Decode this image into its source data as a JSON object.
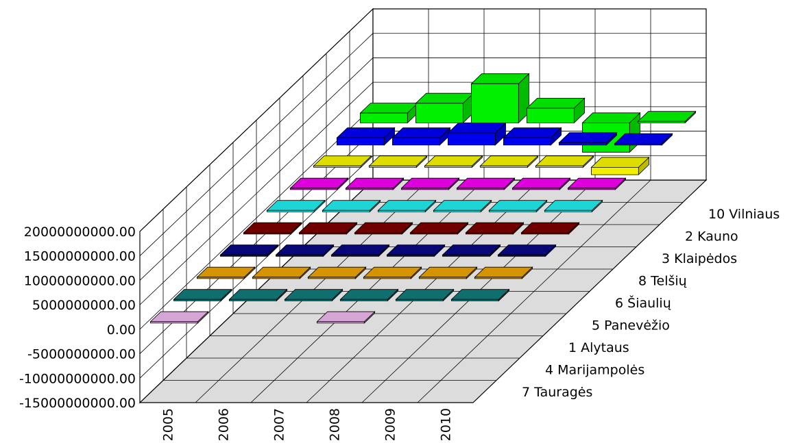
{
  "chart_data": {
    "type": "bar",
    "title": "",
    "xlabel": "",
    "ylabel": "",
    "categories": [
      "2005",
      "2006",
      "2007",
      "2008",
      "2009",
      "2010"
    ],
    "y_ticks": [
      "20000000000.00",
      "15000000000.00",
      "10000000000.00",
      "5000000000.00",
      "0.00",
      "-5000000000.00",
      "-10000000000.00",
      "-15000000000.00"
    ],
    "ylim": [
      -15000000000,
      20000000000
    ],
    "grid": true,
    "legend_position": "right",
    "series": [
      {
        "name": "7 Tauragės",
        "color": "#e8b4e8",
        "values": [
          300000000,
          null,
          null,
          300000000,
          null,
          null
        ]
      },
      {
        "name": "4 Marijampolės",
        "color": "#107878",
        "values": [
          300000000,
          300000000,
          300000000,
          300000000,
          300000000,
          300000000
        ]
      },
      {
        "name": "1 Alytaus",
        "color": "#e8a000",
        "values": [
          300000000,
          300000000,
          300000000,
          300000000,
          300000000,
          300000000
        ]
      },
      {
        "name": "5 Panevėžio",
        "color": "#080880",
        "values": [
          300000000,
          300000000,
          300000000,
          300000000,
          300000000,
          300000000
        ]
      },
      {
        "name": "6 Šiaulių",
        "color": "#780000",
        "values": [
          300000000,
          300000000,
          300000000,
          300000000,
          300000000,
          300000000
        ]
      },
      {
        "name": "8 Telšių",
        "color": "#20e8e8",
        "values": [
          300000000,
          300000000,
          300000000,
          300000000,
          300000000,
          300000000
        ]
      },
      {
        "name": "3 Klaipėdos",
        "color": "#f000f0",
        "values": [
          300000000,
          300000000,
          300000000,
          300000000,
          300000000,
          300000000
        ]
      },
      {
        "name": "2 Kauno",
        "color": "#f0f000",
        "values": [
          300000000,
          300000000,
          300000000,
          300000000,
          300000000,
          -1500000000
        ]
      },
      {
        "name": "10 Vilniaus",
        "color": "#0000f0",
        "values": [
          1500000000,
          1500000000,
          2500000000,
          1500000000,
          500000000,
          300000000
        ]
      },
      {
        "name": "",
        "color": "#00f000",
        "values": [
          2000000000,
          4000000000,
          8000000000,
          3000000000,
          -6000000000,
          300000000
        ]
      }
    ]
  }
}
